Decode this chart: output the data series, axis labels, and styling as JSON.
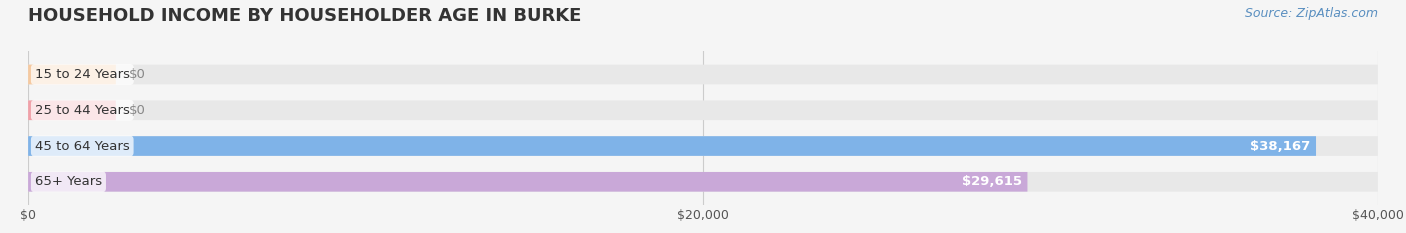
{
  "title": "HOUSEHOLD INCOME BY HOUSEHOLDER AGE IN BURKE",
  "source_text": "Source: ZipAtlas.com",
  "categories": [
    "15 to 24 Years",
    "25 to 44 Years",
    "45 to 64 Years",
    "65+ Years"
  ],
  "values": [
    0,
    0,
    38167,
    29615
  ],
  "bar_colors": [
    "#f5c9a0",
    "#f0a0a8",
    "#7fb3e8",
    "#c9a8d8"
  ],
  "bar_labels": [
    "$0",
    "$0",
    "$38,167",
    "$29,615"
  ],
  "label_colors": [
    "#888888",
    "#888888",
    "#ffffff",
    "#ffffff"
  ],
  "background_color": "#f5f5f5",
  "bar_bg_color": "#e8e8e8",
  "xlim": [
    0,
    40000
  ],
  "xticks": [
    0,
    20000,
    40000
  ],
  "xticklabels": [
    "$0",
    "$20,000",
    "$40,000"
  ],
  "title_fontsize": 13,
  "label_fontsize": 9.5,
  "tick_fontsize": 9,
  "source_fontsize": 9,
  "bar_height": 0.55,
  "figsize": [
    14.06,
    2.33
  ],
  "dpi": 100
}
